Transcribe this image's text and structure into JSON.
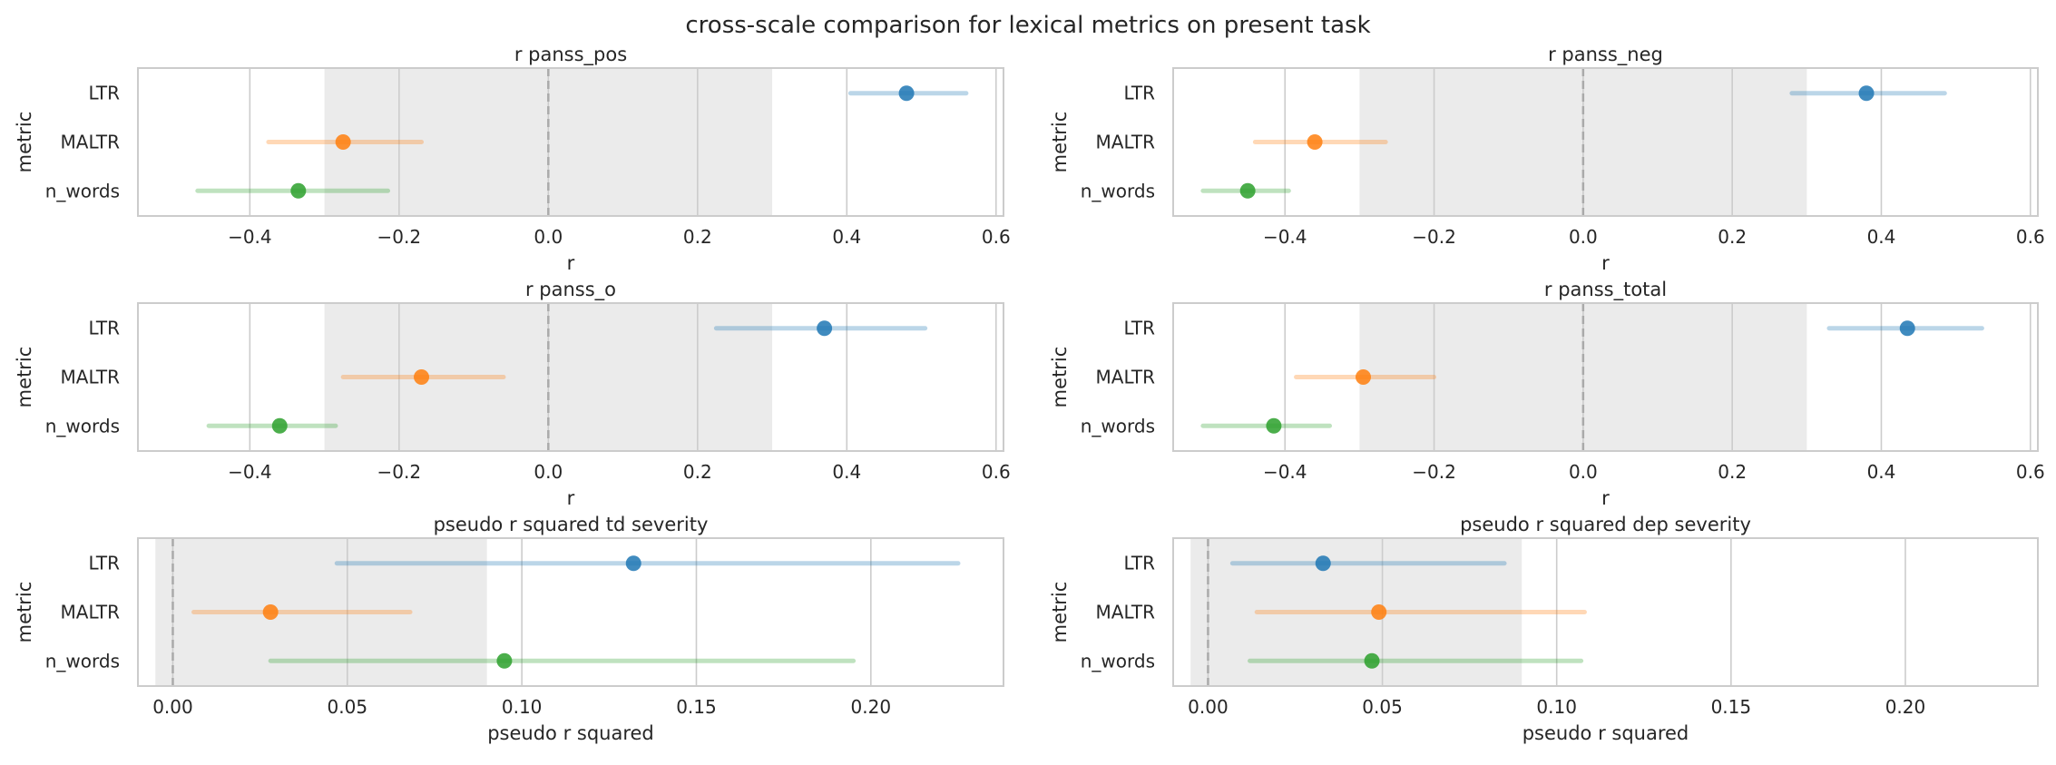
{
  "figure": {
    "title": "cross-scale comparison for lexical metrics on present task"
  },
  "colors": {
    "LTR": "#1f77b4",
    "MALTR": "#ff7f0e",
    "n_words": "#2ca02c",
    "band": "#ebebeb",
    "grid": "#cccccc",
    "zero_line": "#aaaaaa",
    "frame": "#cccccc"
  },
  "chart_data": [
    {
      "type": "scatter",
      "title": "r panss_pos",
      "xlabel": "r",
      "ylabel": "metric",
      "xlim": [
        -0.55,
        0.61
      ],
      "xticks": [
        -0.4,
        -0.2,
        0.0,
        0.2,
        0.4,
        0.6
      ],
      "xtick_labels": [
        "−0.4",
        "−0.2",
        "0.0",
        "0.2",
        "0.4",
        "0.6"
      ],
      "categories": [
        "LTR",
        "MALTR",
        "n_words"
      ],
      "values": [
        0.48,
        -0.275,
        -0.335
      ],
      "ci_low": [
        0.405,
        -0.375,
        -0.47
      ],
      "ci_high": [
        0.56,
        -0.17,
        -0.215
      ],
      "shaded_band": [
        -0.3,
        0.3
      ],
      "reference_line": 0.0,
      "grid": true
    },
    {
      "type": "scatter",
      "title": "r panss_neg",
      "xlabel": "r",
      "ylabel": "metric",
      "xlim": [
        -0.55,
        0.61
      ],
      "xticks": [
        -0.4,
        -0.2,
        0.0,
        0.2,
        0.4,
        0.6
      ],
      "xtick_labels": [
        "−0.4",
        "−0.2",
        "0.0",
        "0.2",
        "0.4",
        "0.6"
      ],
      "categories": [
        "LTR",
        "MALTR",
        "n_words"
      ],
      "values": [
        0.38,
        -0.36,
        -0.45
      ],
      "ci_low": [
        0.28,
        -0.44,
        -0.51
      ],
      "ci_high": [
        0.485,
        -0.265,
        -0.395
      ],
      "shaded_band": [
        -0.3,
        0.3
      ],
      "reference_line": 0.0,
      "grid": true
    },
    {
      "type": "scatter",
      "title": "r panss_o",
      "xlabel": "r",
      "ylabel": "metric",
      "xlim": [
        -0.55,
        0.61
      ],
      "xticks": [
        -0.4,
        -0.2,
        0.0,
        0.2,
        0.4,
        0.6
      ],
      "xtick_labels": [
        "−0.4",
        "−0.2",
        "0.0",
        "0.2",
        "0.4",
        "0.6"
      ],
      "categories": [
        "LTR",
        "MALTR",
        "n_words"
      ],
      "values": [
        0.37,
        -0.17,
        -0.36
      ],
      "ci_low": [
        0.225,
        -0.275,
        -0.455
      ],
      "ci_high": [
        0.505,
        -0.06,
        -0.285
      ],
      "shaded_band": [
        -0.3,
        0.3
      ],
      "reference_line": 0.0,
      "grid": true
    },
    {
      "type": "scatter",
      "title": "r panss_total",
      "xlabel": "r",
      "ylabel": "metric",
      "xlim": [
        -0.55,
        0.61
      ],
      "xticks": [
        -0.4,
        -0.2,
        0.0,
        0.2,
        0.4,
        0.6
      ],
      "xtick_labels": [
        "−0.4",
        "−0.2",
        "0.0",
        "0.2",
        "0.4",
        "0.6"
      ],
      "categories": [
        "LTR",
        "MALTR",
        "n_words"
      ],
      "values": [
        0.435,
        -0.295,
        -0.415
      ],
      "ci_low": [
        0.33,
        -0.385,
        -0.51
      ],
      "ci_high": [
        0.535,
        -0.2,
        -0.34
      ],
      "shaded_band": [
        -0.3,
        0.3
      ],
      "reference_line": 0.0,
      "grid": true
    },
    {
      "type": "scatter",
      "title": "pseudo r squared td severity",
      "xlabel": "pseudo r squared",
      "ylabel": "metric",
      "xlim": [
        -0.01,
        0.238
      ],
      "xticks": [
        0.0,
        0.05,
        0.1,
        0.15,
        0.2
      ],
      "xtick_labels": [
        "0.00",
        "0.05",
        "0.10",
        "0.15",
        "0.20"
      ],
      "categories": [
        "LTR",
        "MALTR",
        "n_words"
      ],
      "values": [
        0.132,
        0.028,
        0.095
      ],
      "ci_low": [
        0.047,
        0.006,
        0.028
      ],
      "ci_high": [
        0.225,
        0.068,
        0.195
      ],
      "shaded_band": [
        -0.005,
        0.09
      ],
      "reference_line": 0.0,
      "grid": true
    },
    {
      "type": "scatter",
      "title": "pseudo r squared dep severity",
      "xlabel": "pseudo r squared",
      "ylabel": "metric",
      "xlim": [
        -0.01,
        0.238
      ],
      "xticks": [
        0.0,
        0.05,
        0.1,
        0.15,
        0.2
      ],
      "xtick_labels": [
        "0.00",
        "0.05",
        "0.10",
        "0.15",
        "0.20"
      ],
      "categories": [
        "LTR",
        "MALTR",
        "n_words"
      ],
      "values": [
        0.033,
        0.049,
        0.047
      ],
      "ci_low": [
        0.007,
        0.014,
        0.012
      ],
      "ci_high": [
        0.085,
        0.108,
        0.107
      ],
      "shaded_band": [
        -0.005,
        0.09
      ],
      "reference_line": 0.0,
      "grid": true
    }
  ]
}
